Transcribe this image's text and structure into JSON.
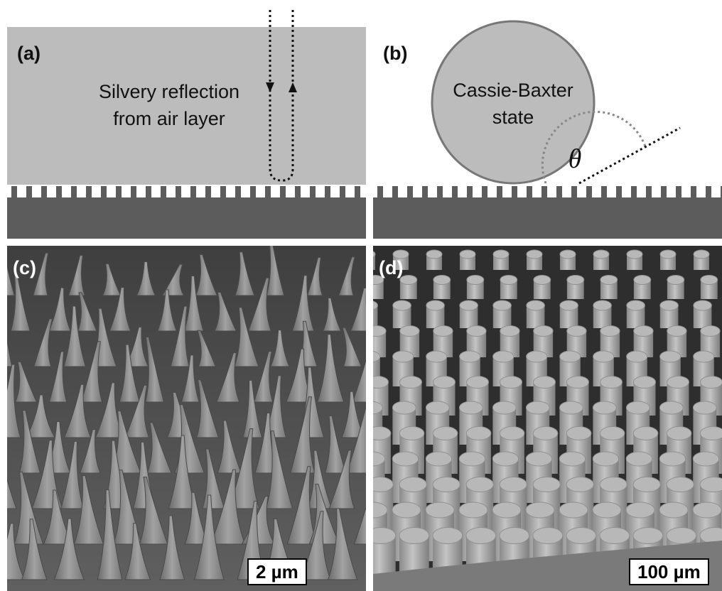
{
  "panels": {
    "a": {
      "label": "(a)",
      "text_line1": "Silvery reflection",
      "text_line2": "from air layer"
    },
    "b": {
      "label": "(b)",
      "text_line1": "Cassie-Baxter",
      "text_line2": "state",
      "angle_symbol": "θ"
    },
    "c": {
      "label": "(c)",
      "scale_bar": "2 µm"
    },
    "d": {
      "label": "(d)",
      "scale_bar": "100 µm"
    }
  },
  "colors": {
    "water": "#bcbcbc",
    "substrate": "#5c5c5c",
    "droplet_outline": "#777777",
    "sem_background": "#5a5a5a",
    "pillar": "#b4b4b4"
  }
}
